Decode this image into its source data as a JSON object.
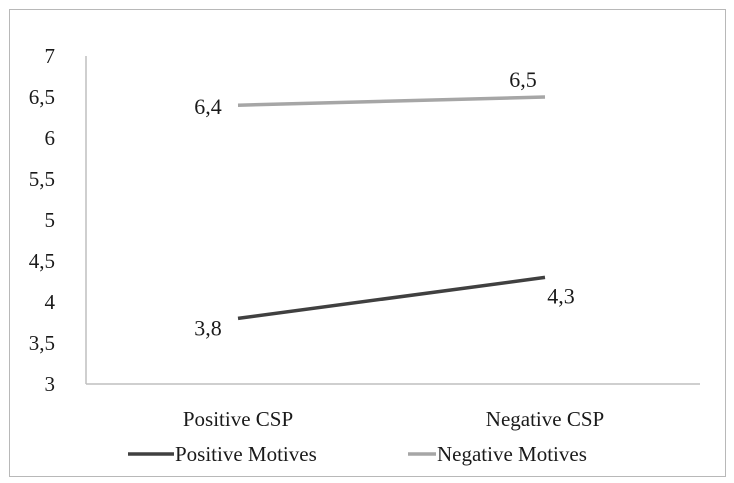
{
  "chart_data": {
    "type": "line",
    "categories": [
      "Positive CSP",
      "Negative CSP"
    ],
    "ylim": [
      3,
      7
    ],
    "yticks": [
      "3",
      "3,5",
      "4",
      "4,5",
      "5",
      "5,5",
      "6",
      "6,5",
      "7"
    ],
    "grid": false,
    "legend_position": "bottom",
    "series": [
      {
        "name": "Positive Motives",
        "values": [
          3.8,
          4.3
        ],
        "labels": [
          "3,8",
          "4,3"
        ],
        "color": "#404040"
      },
      {
        "name": "Negative Motives",
        "values": [
          6.4,
          6.5
        ],
        "labels": [
          "6,4",
          "6,5"
        ],
        "color": "#a6a6a6"
      }
    ]
  }
}
